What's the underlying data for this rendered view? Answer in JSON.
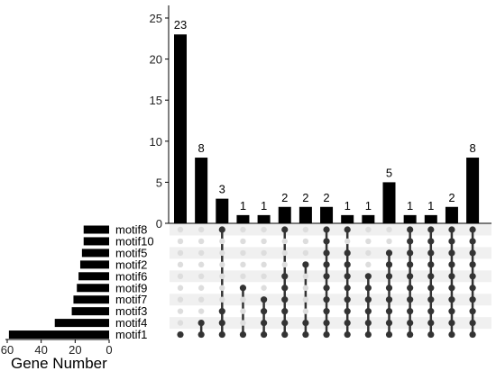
{
  "chart_data": {
    "type": "upset",
    "intersection_chart": {
      "type": "bar",
      "ylim": [
        0,
        25
      ],
      "yticks": [
        0,
        5,
        10,
        15,
        20,
        25
      ],
      "values": [
        23,
        8,
        3,
        1,
        1,
        2,
        2,
        2,
        1,
        1,
        5,
        1,
        1,
        2,
        8
      ],
      "value_labels": [
        "23",
        "8",
        "3",
        "1",
        "1",
        "2",
        "2",
        "2",
        "1",
        "1",
        "5",
        "1",
        "1",
        "2",
        "8"
      ]
    },
    "sets": [
      "motif8",
      "motif10",
      "motif5",
      "motif2",
      "motif6",
      "motif9",
      "motif7",
      "motif3",
      "motif4",
      "motif1"
    ],
    "set_size_chart": {
      "type": "bar",
      "xlabel": "Gene Number",
      "xticks": [
        60,
        40,
        20,
        0
      ],
      "xtick_labels": [
        "60",
        "40",
        "20",
        "0"
      ],
      "xlim": [
        0,
        60
      ],
      "sizes": [
        15,
        15,
        16,
        17,
        18,
        19,
        21,
        22,
        32,
        59
      ]
    },
    "matrix": [
      [
        9
      ],
      [
        8,
        9
      ],
      [
        0,
        7,
        8,
        9
      ],
      [
        5,
        9
      ],
      [
        6,
        7,
        8,
        9
      ],
      [
        0,
        4,
        5,
        6,
        7,
        8,
        9
      ],
      [
        3,
        8,
        9
      ],
      [
        0,
        1,
        2,
        3,
        4,
        5,
        6,
        7,
        8,
        9
      ],
      [
        0,
        2,
        3,
        4,
        5,
        6,
        7,
        8,
        9
      ],
      [
        4,
        5,
        6,
        7,
        8,
        9
      ],
      [
        2,
        3,
        4,
        5,
        6,
        7,
        8,
        9
      ],
      [
        0,
        1,
        2,
        3,
        4,
        5,
        6,
        7,
        8,
        9
      ],
      [
        0,
        1,
        2,
        3,
        4,
        5,
        6,
        7,
        8,
        9
      ],
      [
        0,
        1,
        2,
        3,
        4,
        5,
        6,
        7,
        8,
        9
      ],
      [
        0,
        1,
        2,
        3,
        4,
        5,
        6,
        7,
        8,
        9
      ]
    ],
    "colors": {
      "bar": "#000000",
      "dot_active": "#333333",
      "dot_inactive": "#dddddd",
      "stripe": "#f0f0f0"
    }
  }
}
